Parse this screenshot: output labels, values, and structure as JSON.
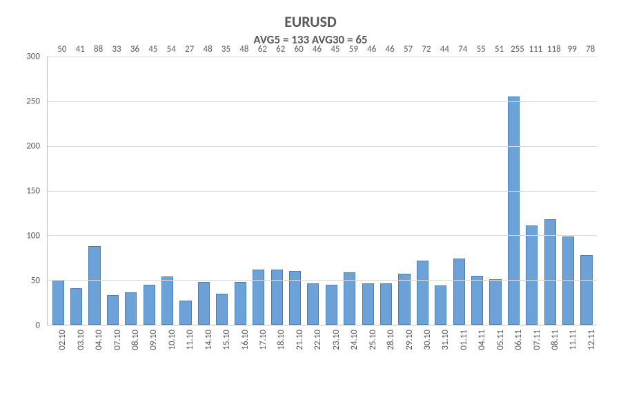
{
  "chart": {
    "type": "bar",
    "title": "EURUSD",
    "subtitle": "AVG5 = 133 AVG30 = 65",
    "title_fontsize": 22,
    "subtitle_fontsize": 17,
    "text_color": "#595959",
    "background_color": "#ffffff",
    "grid_color": "#d9d9d9",
    "axis_color": "#bfbfbf",
    "bar_fill": "#6da2d8",
    "bar_border": "#4a7fb5",
    "bar_width": 0.65,
    "ylim": [
      0,
      300
    ],
    "ytick_step": 50,
    "yticks": [
      0,
      50,
      100,
      150,
      200,
      250,
      300
    ],
    "label_fontsize": 13,
    "categories": [
      "02.10",
      "03.10",
      "04.10",
      "07.10",
      "08.10",
      "09.10",
      "10.10",
      "11.10",
      "14.10",
      "15.10",
      "16.10",
      "17.10",
      "18.10",
      "21.10",
      "22.10",
      "23.10",
      "24.10",
      "25.10",
      "28.10",
      "29.10",
      "30.10",
      "31.10",
      "01.11",
      "04.11",
      "05.11",
      "06.11",
      "07.11",
      "08.11",
      "11.11",
      "12.11"
    ],
    "values": [
      50,
      41,
      88,
      33,
      36,
      45,
      54,
      27,
      48,
      35,
      48,
      62,
      62,
      60,
      46,
      45,
      59,
      46,
      46,
      57,
      72,
      44,
      74,
      55,
      51,
      255,
      111,
      118,
      99,
      78
    ]
  }
}
